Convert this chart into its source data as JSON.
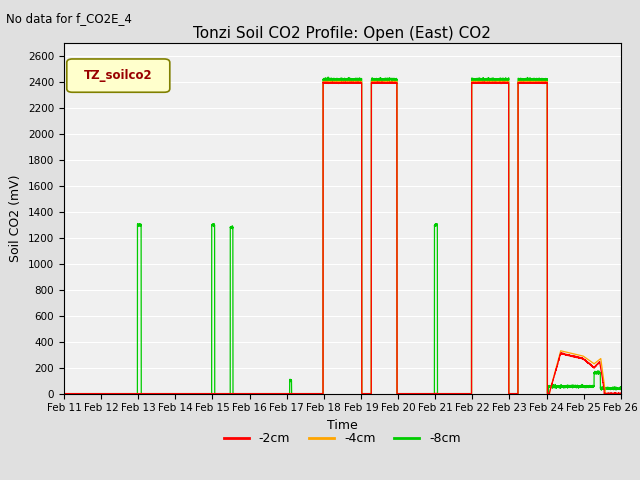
{
  "title": "Tonzi Soil CO2 Profile: Open (East) CO2",
  "subtitle": "No data for f_CO2E_4",
  "ylabel": "Soil CO2 (mV)",
  "xlabel": "Time",
  "ylim": [
    0,
    2700
  ],
  "yticks": [
    0,
    200,
    400,
    600,
    800,
    1000,
    1200,
    1400,
    1600,
    1800,
    2000,
    2200,
    2400,
    2600
  ],
  "legend_label": "TZ_soilco2",
  "line_labels": [
    "-2cm",
    "-4cm",
    "-8cm"
  ],
  "line_colors": [
    "#ff0000",
    "#ffa500",
    "#00cc00"
  ],
  "bg_color": "#e0e0e0",
  "plot_bg_color": "#f0f0f0",
  "xtick_labels": [
    "Feb 11",
    "Feb 12",
    "Feb 13",
    "Feb 14",
    "Feb 15",
    "Feb 16",
    "Feb 17",
    "Feb 18",
    "Feb 19",
    "Feb 20",
    "Feb 21",
    "Feb 22",
    "Feb 23",
    "Feb 24",
    "Feb 25",
    "Feb 26"
  ],
  "grid_color": "#ffffff",
  "title_fontsize": 11,
  "axis_fontsize": 9,
  "tick_fontsize": 7.5
}
